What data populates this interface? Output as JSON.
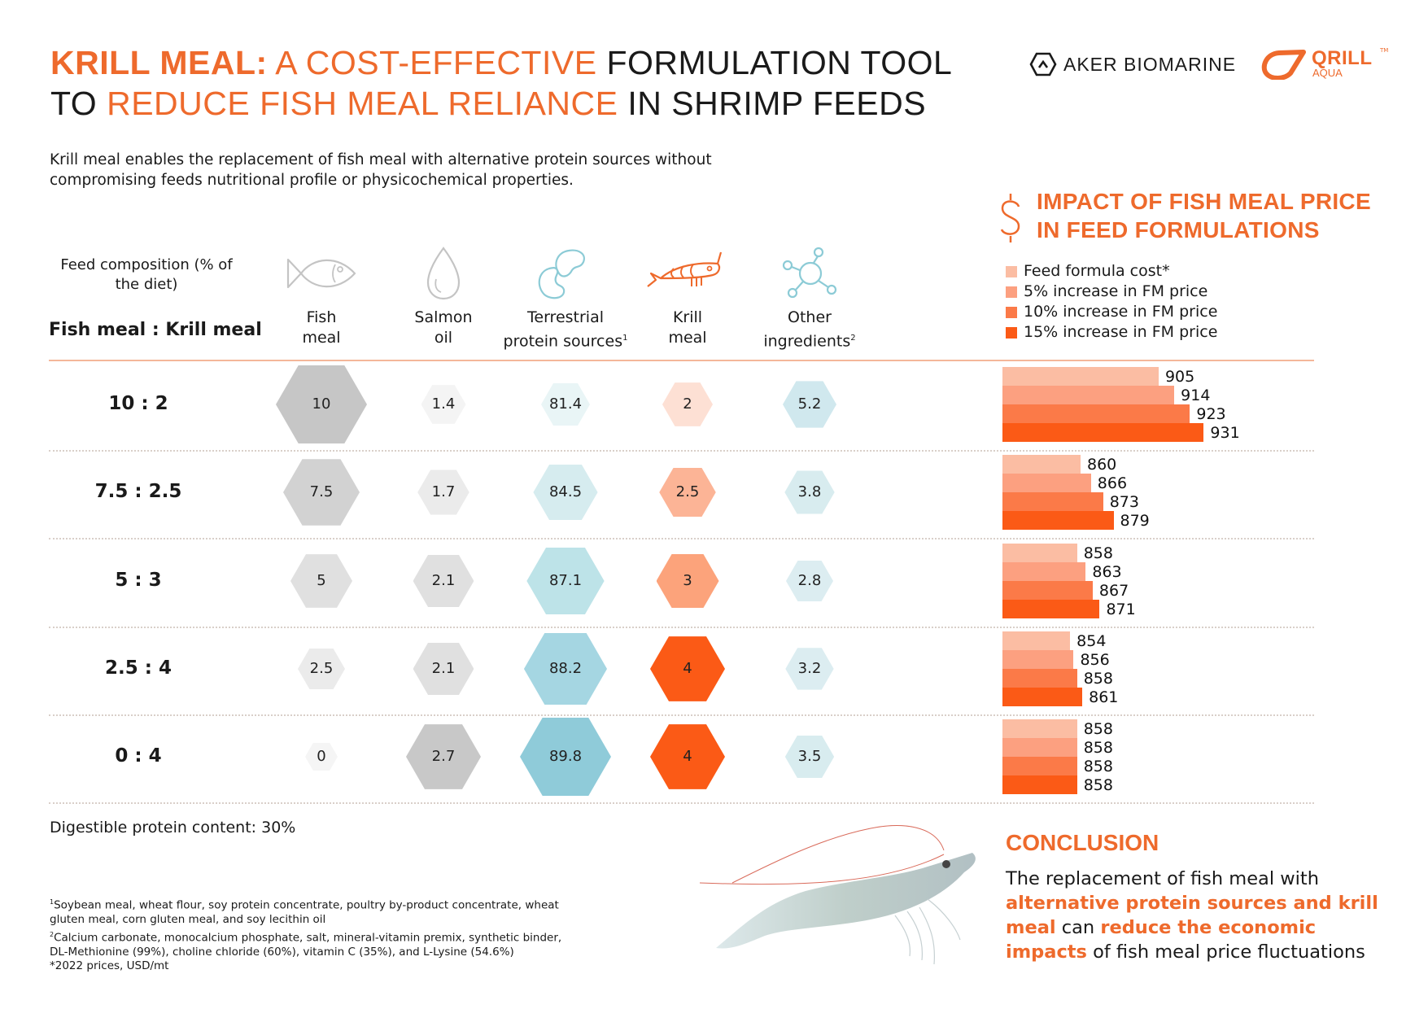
{
  "header": {
    "title_line1": [
      {
        "text": "KRILL MEAL:",
        "style": "orange-bold"
      },
      {
        "text": " A COST-EFFECTIVE",
        "style": "orange"
      },
      {
        "text": " FORMULATION TOOL",
        "style": "dark"
      }
    ],
    "title_line2": [
      {
        "text": "TO ",
        "style": "dark"
      },
      {
        "text": "REDUCE FISH MEAL RELIANCE",
        "style": "orange"
      },
      {
        "text": " IN SHRIMP FEEDS",
        "style": "dark"
      }
    ],
    "logos": {
      "aker": "AKER BIOMARINE",
      "qrill": "QRILL",
      "qrill_tm": "TM",
      "qrill_sub": "AQUA"
    },
    "intro": "Krill meal enables the replacement of fish meal with alternative protein sources without compromising feeds nutritional profile or physicochemical properties."
  },
  "table": {
    "feed_composition_label": "Feed composition (% of the diet)",
    "ratio_header": "Fish meal : Krill meal",
    "columns": [
      {
        "key": "fish_meal",
        "label_line1": "Fish",
        "label_line2": "meal",
        "sup": "",
        "icon": "fish-icon",
        "color_family": "grey"
      },
      {
        "key": "salmon_oil",
        "label_line1": "Salmon",
        "label_line2": "oil",
        "sup": "",
        "icon": "oil-drop-icon",
        "color_family": "grey"
      },
      {
        "key": "terrestrial",
        "label_line1": "Terrestrial",
        "label_line2": "protein sources",
        "sup": "1",
        "icon": "beans-icon",
        "color_family": "blue"
      },
      {
        "key": "krill_meal",
        "label_line1": "Krill",
        "label_line2": "meal",
        "sup": "",
        "icon": "shrimp-icon",
        "color_family": "orange"
      },
      {
        "key": "other",
        "label_line1": "Other",
        "label_line2": "ingredients",
        "sup": "2",
        "icon": "molecule-icon",
        "color_family": "lightblue"
      }
    ],
    "rows": [
      {
        "ratio": "10 : 2",
        "values": [
          "10",
          "1.4",
          "81.4",
          "2",
          "5.2"
        ],
        "costs": [
          "905",
          "914",
          "923",
          "931"
        ]
      },
      {
        "ratio": "7.5 : 2.5",
        "values": [
          "7.5",
          "1.7",
          "84.5",
          "2.5",
          "3.8"
        ],
        "costs": [
          "860",
          "866",
          "873",
          "879"
        ]
      },
      {
        "ratio": "5 : 3",
        "values": [
          "5",
          "2.1",
          "87.1",
          "3",
          "2.8"
        ],
        "costs": [
          "858",
          "863",
          "867",
          "871"
        ]
      },
      {
        "ratio": "2.5 : 4",
        "values": [
          "2.5",
          "2.1",
          "88.2",
          "4",
          "3.2"
        ],
        "costs": [
          "854",
          "856",
          "858",
          "861"
        ]
      },
      {
        "ratio": "0 : 4",
        "values": [
          "0",
          "2.7",
          "89.8",
          "4",
          "3.5"
        ],
        "costs": [
          "858",
          "858",
          "858",
          "858"
        ]
      }
    ]
  },
  "impact": {
    "title_line1": "IMPACT OF FISH MEAL PRICE",
    "title_line2": "IN FEED FORMULATIONS",
    "icon": "dollar-icon",
    "legend": [
      {
        "label": "Feed formula cost*",
        "color": "#fbbda3"
      },
      {
        "label": "5% increase in FM price",
        "color": "#fca080"
      },
      {
        "label": "10% increase in FM price",
        "color": "#fb7a48"
      },
      {
        "label": "15% increase in FM price",
        "color": "#fb5a16"
      }
    ]
  },
  "chart_data": {
    "type": "bar",
    "orientation": "horizontal",
    "title": "IMPACT OF FISH MEAL PRICE IN FEED FORMULATIONS",
    "categories": [
      "10 : 2",
      "7.5 : 2.5",
      "5 : 3",
      "2.5 : 4",
      "0 : 4"
    ],
    "series": [
      {
        "name": "Feed formula cost*",
        "values": [
          905,
          860,
          858,
          854,
          858
        ]
      },
      {
        "name": "5% increase in FM price",
        "values": [
          914,
          866,
          863,
          856,
          858
        ]
      },
      {
        "name": "10% increase in FM price",
        "values": [
          923,
          873,
          867,
          858,
          858
        ]
      },
      {
        "name": "15% increase in FM price",
        "values": [
          931,
          879,
          871,
          861,
          858
        ]
      }
    ],
    "xlabel": "",
    "ylabel": "",
    "units": "USD/mt",
    "legend": "top",
    "grid": false
  },
  "composition_data": {
    "type": "table",
    "columns": [
      "Fish meal",
      "Salmon oil",
      "Terrestrial protein sources",
      "Krill meal",
      "Other ingredients"
    ],
    "rows": {
      "10 : 2": [
        10,
        1.4,
        81.4,
        2,
        5.2
      ],
      "7.5 : 2.5": [
        7.5,
        1.7,
        84.5,
        2.5,
        3.8
      ],
      "5 : 3": [
        5,
        2.1,
        87.1,
        3,
        2.8
      ],
      "2.5 : 4": [
        2.5,
        2.1,
        88.2,
        4,
        3.2
      ],
      "0 : 4": [
        0,
        2.7,
        89.8,
        4,
        3.5
      ]
    }
  },
  "footer": {
    "digestible": "Digestible protein content: 30%",
    "footnote1_sup": "1",
    "footnote1": "Soybean meal, wheat flour, soy protein concentrate, poultry by-product concentrate, wheat gluten meal, corn gluten meal, and soy lecithin oil",
    "footnote2_sup": "2",
    "footnote2": "Calcium carbonate, monocalcium phosphate, salt, mineral-vitamin premix, synthetic binder, DL-Methionine (99%), choline chloride (60%), vitamin C (35%), and L-Lysine (54.6%)",
    "footnote3": "*2022 prices, USD/mt"
  },
  "conclusion": {
    "title": "CONCLUSION",
    "parts": [
      {
        "text": "The replacement of fish meal with ",
        "hl": false
      },
      {
        "text": "alternative protein sources and krill meal",
        "hl": true
      },
      {
        "text": " can ",
        "hl": false
      },
      {
        "text": "reduce the economic impacts",
        "hl": true
      },
      {
        "text": " of fish meal price fluctuations",
        "hl": false
      }
    ]
  },
  "colors": {
    "accent": "#ee6a2c",
    "rule": "#f4b79a"
  }
}
